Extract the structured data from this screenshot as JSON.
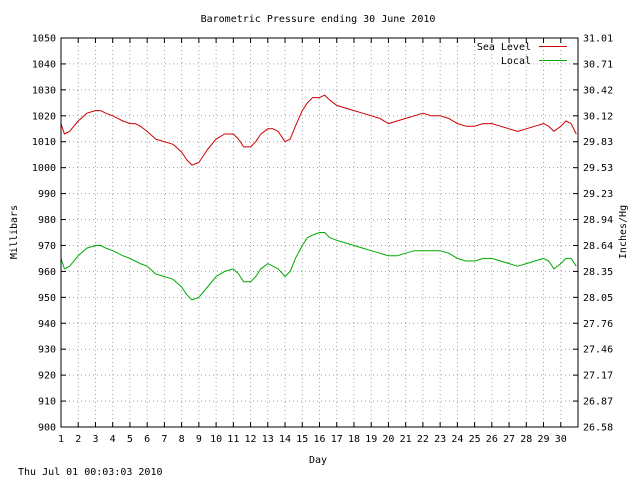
{
  "chart_data": {
    "type": "line",
    "title": "Barometric Pressure ending 30 June 2010",
    "xlabel": "Day",
    "ylabel": "Millibars",
    "y2label": "Inches/Hg",
    "footer": "Thu Jul 01 00:03:03 2010",
    "xlim": [
      1,
      31
    ],
    "ylim": [
      900,
      1050
    ],
    "y2lim": [
      26.58,
      31.01
    ],
    "x_ticks": [
      "1",
      "2",
      "3",
      "4",
      "5",
      "6",
      "7",
      "8",
      "9",
      "10",
      "11",
      "12",
      "13",
      "14",
      "15",
      "16",
      "17",
      "18",
      "19",
      "20",
      "21",
      "22",
      "23",
      "24",
      "25",
      "26",
      "27",
      "28",
      "29",
      "30"
    ],
    "y_ticks": [
      900,
      910,
      920,
      930,
      940,
      950,
      960,
      970,
      980,
      990,
      1000,
      1010,
      1020,
      1030,
      1040,
      1050
    ],
    "y2_ticks": [
      "26.58",
      "26.87",
      "27.17",
      "27.46",
      "27.76",
      "28.05",
      "28.35",
      "28.64",
      "28.94",
      "29.23",
      "29.53",
      "29.83",
      "30.12",
      "30.42",
      "30.71",
      "31.01"
    ],
    "grid": true,
    "legend_position": "top-right",
    "series": [
      {
        "name": "Sea Level",
        "color": "#cc0000",
        "x": [
          1.0,
          1.2,
          1.5,
          2.0,
          2.5,
          3.0,
          3.3,
          3.6,
          4.0,
          4.3,
          4.6,
          5.0,
          5.3,
          5.6,
          6.0,
          6.5,
          7.0,
          7.5,
          8.0,
          8.3,
          8.6,
          9.0,
          9.5,
          10.0,
          10.5,
          11.0,
          11.3,
          11.6,
          12.0,
          12.3,
          12.6,
          13.0,
          13.3,
          13.6,
          14.0,
          14.3,
          14.6,
          15.0,
          15.3,
          15.6,
          16.0,
          16.3,
          16.6,
          17.0,
          17.5,
          18.0,
          18.5,
          19.0,
          19.5,
          20.0,
          20.5,
          21.0,
          21.5,
          22.0,
          22.5,
          23.0,
          23.5,
          24.0,
          24.5,
          25.0,
          25.5,
          26.0,
          26.5,
          27.0,
          27.5,
          28.0,
          28.5,
          29.0,
          29.3,
          29.6,
          30.0,
          30.3,
          30.6,
          30.9
        ],
        "values": [
          1017,
          1013,
          1014,
          1018,
          1021,
          1022,
          1022,
          1021,
          1020,
          1019,
          1018,
          1017,
          1017,
          1016,
          1014,
          1011,
          1010,
          1009,
          1006,
          1003,
          1001,
          1002,
          1007,
          1011,
          1013,
          1013,
          1011,
          1008,
          1008,
          1010,
          1013,
          1015,
          1015,
          1014,
          1010,
          1011,
          1016,
          1022,
          1025,
          1027,
          1027,
          1028,
          1026,
          1024,
          1023,
          1022,
          1021,
          1020,
          1019,
          1017,
          1018,
          1019,
          1020,
          1021,
          1020,
          1020,
          1019,
          1017,
          1016,
          1016,
          1017,
          1017,
          1016,
          1015,
          1014,
          1015,
          1016,
          1017,
          1016,
          1014,
          1016,
          1018,
          1017,
          1013
        ]
      },
      {
        "name": "Local",
        "color": "#00aa00",
        "x": [
          1.0,
          1.2,
          1.5,
          2.0,
          2.5,
          3.0,
          3.3,
          3.6,
          4.0,
          4.3,
          4.6,
          5.0,
          5.3,
          5.6,
          6.0,
          6.5,
          7.0,
          7.5,
          8.0,
          8.3,
          8.6,
          9.0,
          9.5,
          10.0,
          10.5,
          11.0,
          11.3,
          11.6,
          12.0,
          12.3,
          12.6,
          13.0,
          13.3,
          13.6,
          14.0,
          14.3,
          14.6,
          15.0,
          15.3,
          15.6,
          16.0,
          16.3,
          16.6,
          17.0,
          17.5,
          18.0,
          18.5,
          19.0,
          19.5,
          20.0,
          20.5,
          21.0,
          21.5,
          22.0,
          22.5,
          23.0,
          23.5,
          24.0,
          24.5,
          25.0,
          25.5,
          26.0,
          26.5,
          27.0,
          27.5,
          28.0,
          28.5,
          29.0,
          29.3,
          29.6,
          30.0,
          30.3,
          30.6,
          30.9
        ],
        "values": [
          965,
          961,
          962,
          966,
          969,
          970,
          970,
          969,
          968,
          967,
          966,
          965,
          964,
          963,
          962,
          959,
          958,
          957,
          954,
          951,
          949,
          950,
          954,
          958,
          960,
          961,
          959,
          956,
          956,
          958,
          961,
          963,
          962,
          961,
          958,
          960,
          965,
          970,
          973,
          974,
          975,
          975,
          973,
          972,
          971,
          970,
          969,
          968,
          967,
          966,
          966,
          967,
          968,
          968,
          968,
          968,
          967,
          965,
          964,
          964,
          965,
          965,
          964,
          963,
          962,
          963,
          964,
          965,
          964,
          961,
          963,
          965,
          965,
          962
        ]
      }
    ]
  }
}
